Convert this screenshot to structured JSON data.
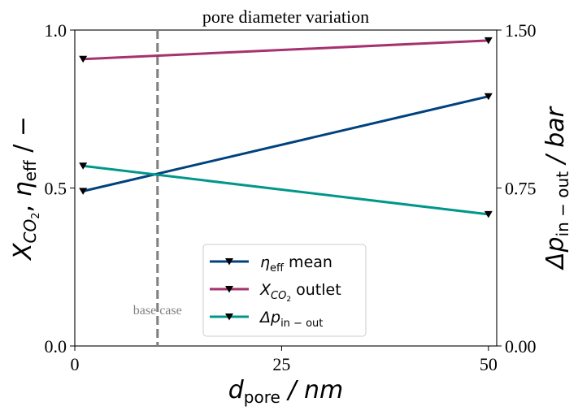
{
  "chart_data": {
    "type": "line",
    "title": "pore diameter variation",
    "x": [
      1,
      50
    ],
    "xlim": [
      0,
      51
    ],
    "xticks": [
      0,
      25,
      50
    ],
    "xtick_labels": [
      "0",
      "25",
      "50"
    ],
    "ylim_left": [
      0.0,
      1.0
    ],
    "yticks_left": [
      0.0,
      0.5,
      1.0
    ],
    "ytick_labels_left": [
      "0.0",
      "0.5",
      "1.0"
    ],
    "ylim_right": [
      0.0,
      1.5
    ],
    "yticks_right": [
      0.0,
      0.75,
      1.5
    ],
    "ytick_labels_right": [
      "0.00",
      "0.75",
      "1.50"
    ],
    "xlabel": {
      "base": "d",
      "sub": "pore",
      "rest": " / nm"
    },
    "ylabel_left": {
      "a": "X",
      "a_sub": "CO",
      "a_subsub": "2",
      "sep": ",  ",
      "b": "η",
      "b_sub": "eff",
      "rest": " / −"
    },
    "ylabel_right": {
      "base": "Δp",
      "sub": "in − out",
      "rest": " / bar"
    },
    "series": [
      {
        "axis": "left",
        "values": [
          0.49,
          0.79
        ],
        "color": "#00427e",
        "legend": {
          "base": "η",
          "sub": "eff",
          "rest": " mean"
        }
      },
      {
        "axis": "left",
        "values": [
          0.908,
          0.967
        ],
        "color": "#a6326e",
        "legend": {
          "base": "X",
          "sub": "CO",
          "subsub": "2",
          "rest": " outlet"
        }
      },
      {
        "axis": "right",
        "values": [
          0.855,
          0.625
        ],
        "color": "#00978a",
        "legend": {
          "base": "Δp",
          "sub": "in − out",
          "rest": ""
        }
      }
    ],
    "marker": "triangle-down",
    "vline": {
      "x": 10,
      "label": "base case",
      "color": "#808080"
    },
    "grid": false,
    "legend_position": "lower-center"
  }
}
